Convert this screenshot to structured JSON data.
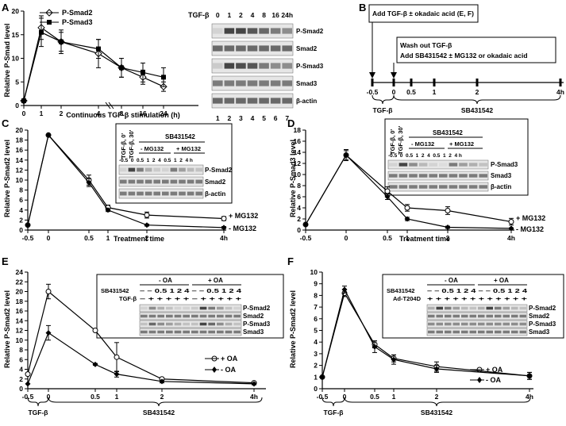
{
  "panel_labels": [
    "A",
    "B",
    "C",
    "D",
    "E",
    "F"
  ],
  "colors": {
    "ink": "#000000",
    "white": "#ffffff",
    "blot_band": "#333333",
    "blot_bg": "#e6e6e6"
  },
  "chart_data": [
    {
      "panel": "A",
      "type": "line",
      "ylabel": "Relative P-Smad level",
      "xlabel": "Continuous TGF-β stimulation (h)",
      "yticks": [
        "0",
        "5",
        "10",
        "15",
        "20"
      ],
      "xticks": [
        "0",
        "1",
        "2",
        "4",
        "8",
        "16",
        "24"
      ],
      "ylim": [
        0,
        20
      ],
      "grid": false,
      "legend_position": "top-left",
      "series": [
        {
          "name": "P-Smad2",
          "marker": "open-diamond",
          "values": [
            1,
            16.5,
            13.5,
            11,
            8,
            6,
            4
          ]
        },
        {
          "name": "P-Smad3",
          "marker": "filled-square",
          "values": [
            1,
            15.5,
            13.5,
            12,
            8,
            7,
            6
          ]
        }
      ]
    },
    {
      "panel": "C",
      "type": "line",
      "ylabel": "Relative P-Smad2 level",
      "xlabel": "Treatment time",
      "xticks": [
        "-0.5",
        "0",
        "0.5",
        "1",
        "2",
        "4h"
      ],
      "yticks": [
        "0",
        "2",
        "4",
        "6",
        "8",
        "10",
        "12",
        "14",
        "16",
        "18",
        "20"
      ],
      "ylim": [
        0,
        20
      ],
      "series": [
        {
          "name": "+ MG132",
          "values": [
            1,
            19,
            10,
            4.5,
            3,
            2.3
          ]
        },
        {
          "name": "- MG132",
          "values": [
            1,
            19,
            9.5,
            4,
            1,
            0.5
          ]
        }
      ]
    },
    {
      "panel": "D",
      "type": "line",
      "ylabel": "Relative P-Smad3 level",
      "xlabel": "Treatment time",
      "xticks": [
        "-0.5",
        "0",
        "0.5",
        "1",
        "2",
        "4h"
      ],
      "yticks": [
        "0",
        "2",
        "4",
        "6",
        "8",
        "10",
        "12",
        "14",
        "16",
        "18"
      ],
      "ylim": [
        0,
        18
      ],
      "series": [
        {
          "name": "+ MG132",
          "values": [
            1,
            13.5,
            7,
            4,
            3.5,
            1.5
          ]
        },
        {
          "name": "- MG132",
          "values": [
            1,
            13.5,
            6,
            2,
            0.5,
            0.3
          ]
        }
      ]
    },
    {
      "panel": "E",
      "type": "line",
      "ylabel": "Relative P-Smad2 level",
      "xticks": [
        "-0.5",
        "0",
        "0.5",
        "1",
        "2",
        "4h"
      ],
      "yticks": [
        "0",
        "2",
        "4",
        "6",
        "8",
        "10",
        "12",
        "14",
        "16",
        "18",
        "20",
        "22",
        "24"
      ],
      "ylim": [
        0,
        24
      ],
      "series": [
        {
          "name": "+ OA",
          "marker": "open-circle",
          "values": [
            3,
            20,
            12,
            6.5,
            2,
            1.2
          ]
        },
        {
          "name": "- OA",
          "marker": "filled-diamond",
          "values": [
            1,
            11.5,
            5,
            3,
            1.5,
            1
          ]
        }
      ]
    },
    {
      "panel": "F",
      "type": "line",
      "ylabel": "Relative P-Smad2 level",
      "xticks": [
        "-0.5",
        "0",
        "0.5",
        "1",
        "2",
        "4h"
      ],
      "yticks": [
        "0",
        "1",
        "2",
        "3",
        "4",
        "5",
        "6",
        "7",
        "8",
        "9",
        "10"
      ],
      "ylim": [
        0,
        10
      ],
      "series": [
        {
          "name": "+ OA",
          "marker": "open-circle",
          "values": [
            1,
            8.2,
            3.8,
            2.6,
            1.9,
            1.1
          ]
        },
        {
          "name": "- OA",
          "marker": "filled-diamond",
          "values": [
            1,
            8.5,
            3.6,
            2.5,
            1.7,
            1.1
          ]
        }
      ]
    }
  ],
  "blot_A": {
    "title": "TGF-β",
    "header": [
      "0",
      "1",
      "2",
      "4",
      "8",
      "16",
      "24h"
    ],
    "lanes": [
      "1",
      "2",
      "3",
      "4",
      "5",
      "6",
      "7"
    ],
    "rows": [
      "P-Smad2",
      "Smad2",
      "P-Smad3",
      "Smad3",
      "β-actin"
    ]
  },
  "panel_B": {
    "box1": "Add TGF-β ± okadaic acid (E, F)",
    "box2_line1": "Wash out TGF-β",
    "box2_line2": "Add SB431542 ± MG132 or okadaic acid",
    "ticks": [
      "-0.5",
      "0",
      "0.5",
      "1",
      "2",
      "4h"
    ],
    "brace1": "TGF-β",
    "brace2": "SB431542"
  },
  "blot_C": {
    "tgf1": "TGF-β, 0'",
    "tgf2": "TGF-β, 30'",
    "sb": "SB431542",
    "minus": "- MG132",
    "plus": "+ MG132",
    "lanes": "-0.5  0  0.5  1  2  4  0.5  1  2  4 h",
    "rows": [
      "P-Smad2",
      "Smad2",
      "β-actin"
    ]
  },
  "blot_D": {
    "tgf1": "TGF-β, 0'",
    "tgf2": "TGF-β, 30'",
    "sb": "SB431542",
    "minus": "- MG132",
    "plus": "+ MG132",
    "lanes": "-0.5  0  0.5  1  2  4  0.5  1  2  4 h",
    "rows": [
      "P-Smad3",
      "Smad3",
      "β-actin"
    ]
  },
  "blot_E": {
    "minus": "- OA",
    "plus": "+ OA",
    "row1_label": "SB431542",
    "row1": "– – 0.5 1 2 4 – – 0.5 1 2 4",
    "row2_label": "TGF-β",
    "row2": "– + + + + + – + + + + +",
    "rows": [
      "P-Smad2",
      "Smad2",
      "P-Smad3",
      "Smad3"
    ]
  },
  "blot_F": {
    "minus": "- OA",
    "plus": "+ OA",
    "row1_label": "SB431542",
    "row1": "– – 0.5 1 2 4 – – 0.5 1 2 4",
    "row2_label": "Ad-T204D",
    "row2": "+ + + + + + + + + + + +",
    "rows": [
      "P-Smad2",
      "Smad2",
      "P-Smad3",
      "Smad3"
    ]
  },
  "bottom_labels": {
    "tgf": "TGF-β",
    "sb": "SB431542"
  }
}
